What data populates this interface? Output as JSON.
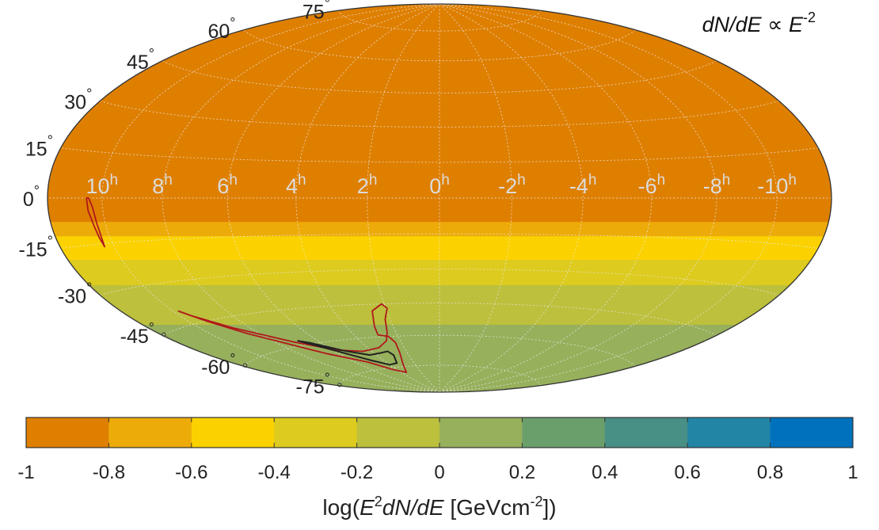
{
  "chart_data": {
    "type": "heatmap",
    "projection": "hammer-aitoff",
    "annotation": {
      "prefix": "dN/dE ∝ E",
      "exponent": "-2"
    },
    "ra_labels": [
      {
        "value": 10,
        "text": "10",
        "sup": "h"
      },
      {
        "value": 8,
        "text": "8",
        "sup": "h"
      },
      {
        "value": 6,
        "text": "6",
        "sup": "h"
      },
      {
        "value": 4,
        "text": "4",
        "sup": "h"
      },
      {
        "value": 2,
        "text": "2",
        "sup": "h"
      },
      {
        "value": 0,
        "text": "0",
        "sup": "h"
      },
      {
        "value": -2,
        "text": "-2",
        "sup": "h"
      },
      {
        "value": -4,
        "text": "-4",
        "sup": "h"
      },
      {
        "value": -6,
        "text": "-6",
        "sup": "h"
      },
      {
        "value": -8,
        "text": "-8",
        "sup": "h"
      },
      {
        "value": -10,
        "text": "-10",
        "sup": "h"
      }
    ],
    "dec_labels": [
      {
        "value": 75,
        "text": "75",
        "sup": "°"
      },
      {
        "value": 60,
        "text": "60",
        "sup": "°"
      },
      {
        "value": 45,
        "text": "45",
        "sup": "°"
      },
      {
        "value": 30,
        "text": "30",
        "sup": "°"
      },
      {
        "value": 15,
        "text": "15",
        "sup": "°"
      },
      {
        "value": 0,
        "text": "0",
        "sup": "°"
      },
      {
        "value": -15,
        "text": "-15",
        "sup": "°"
      },
      {
        "value": -30,
        "text": "-30",
        "sup": "°"
      },
      {
        "value": -45,
        "text": "-45",
        "sup": "°"
      },
      {
        "value": -60,
        "text": "-60",
        "sup": "°"
      },
      {
        "value": -75,
        "text": "-75",
        "sup": "°"
      }
    ],
    "dec_bands": [
      {
        "dec_min": -10,
        "dec_max": 90,
        "value": -0.9,
        "color": "#df7f00"
      },
      {
        "dec_min": -16,
        "dec_max": -10,
        "value": -0.7,
        "color": "#edab0a"
      },
      {
        "dec_min": -26,
        "dec_max": -16,
        "value": -0.5,
        "color": "#fbd200"
      },
      {
        "dec_min": -37,
        "dec_max": -26,
        "value": -0.3,
        "color": "#ddcb1f"
      },
      {
        "dec_min": -55,
        "dec_max": -37,
        "value": -0.1,
        "color": "#bcc03c"
      },
      {
        "dec_min": -90,
        "dec_max": -55,
        "value": 0.1,
        "color": "#97b05c"
      }
    ],
    "colorbar": {
      "range": [
        -1,
        1
      ],
      "colors": [
        "#df7f00",
        "#edab0a",
        "#fbd200",
        "#ddcb1f",
        "#bcc03c",
        "#97b05c",
        "#6a9f6c",
        "#488f85",
        "#2285a6",
        "#0072bd"
      ],
      "ticks": [
        "-1",
        "-0.8",
        "-0.6",
        "-0.4",
        "-0.2",
        "0",
        "0.2",
        "0.4",
        "0.6",
        "0.8",
        "1"
      ],
      "label": {
        "pre": "log(",
        "E": "E",
        "E_sup": "2",
        "mid": "dN/dE",
        "unit": " [GeVcm",
        "unit_sup": "-2",
        "post": "])"
      }
    },
    "contours": [
      {
        "name": "outer",
        "color": "#b0181c",
        "points": [
          [
            10.55,
            0
          ],
          [
            10.52,
            -4
          ],
          [
            10.42,
            -9
          ],
          [
            10.38,
            -13
          ],
          [
            10.34,
            -16
          ],
          [
            10.3,
            -13
          ],
          [
            10.3,
            -8
          ],
          [
            10.35,
            -3
          ],
          [
            10.47,
            0
          ],
          [
            10.55,
            0
          ]
        ]
      },
      {
        "name": "outer",
        "color": "#b0181c",
        "points": [
          [
            9.8,
            -40
          ],
          [
            9.3,
            -45
          ],
          [
            8.5,
            -52
          ],
          [
            7.5,
            -59
          ],
          [
            6.6,
            -65
          ],
          [
            5.2,
            -71
          ],
          [
            4.3,
            -76
          ],
          [
            3.5,
            -78
          ],
          [
            2.95,
            -74
          ],
          [
            2.45,
            -68
          ],
          [
            2.3,
            -63
          ],
          [
            2.45,
            -60
          ],
          [
            2.9,
            -59
          ],
          [
            2.8,
            -55
          ],
          [
            2.55,
            -48
          ],
          [
            2.1,
            -45
          ],
          [
            1.95,
            -47
          ],
          [
            2.2,
            -52
          ],
          [
            2.4,
            -58
          ],
          [
            2.7,
            -62
          ],
          [
            3.4,
            -65
          ],
          [
            4.5,
            -66
          ],
          [
            5.8,
            -64
          ],
          [
            7.2,
            -58
          ],
          [
            8.7,
            -49
          ],
          [
            9.6,
            -42
          ],
          [
            9.8,
            -40
          ]
        ]
      },
      {
        "name": "inner",
        "color": "#222222",
        "points": [
          [
            6.9,
            -58
          ],
          [
            6.1,
            -63
          ],
          [
            4.9,
            -70
          ],
          [
            4.0,
            -73.5
          ],
          [
            3.3,
            -73
          ],
          [
            2.95,
            -69
          ],
          [
            3.1,
            -67
          ],
          [
            3.6,
            -67.5
          ],
          [
            4.4,
            -68
          ],
          [
            5.4,
            -65
          ],
          [
            6.5,
            -59.5
          ],
          [
            6.9,
            -58
          ]
        ]
      }
    ]
  }
}
